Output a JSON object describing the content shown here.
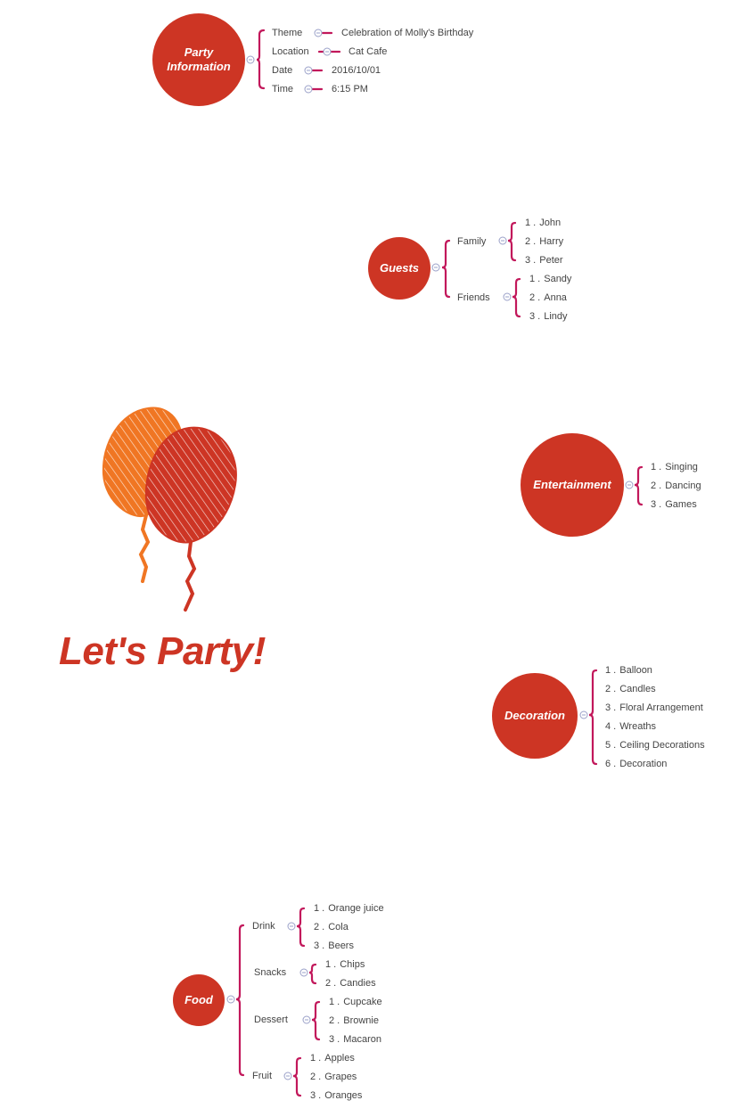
{
  "title": "Let's Party!",
  "colors": {
    "node": "#cd3524",
    "branch": "#c2185b",
    "text": "#444444",
    "balloon_orange": "#f07623",
    "balloon_red": "#cd3524"
  },
  "party_info": {
    "label_line1": "Party",
    "label_line2": "Information",
    "rows": [
      {
        "key": "Theme",
        "value": "Celebration of Molly's Birthday"
      },
      {
        "key": "Location",
        "value": "Cat Cafe"
      },
      {
        "key": "Date",
        "value": "2016/10/01"
      },
      {
        "key": "Time",
        "value": "6:15 PM"
      }
    ]
  },
  "guests": {
    "label": "Guests",
    "groups": [
      {
        "name": "Family",
        "items": [
          "John",
          "Harry",
          "Peter"
        ]
      },
      {
        "name": "Friends",
        "items": [
          "Sandy",
          "Anna",
          "Lindy"
        ]
      }
    ]
  },
  "entertainment": {
    "label": "Entertainment",
    "items": [
      "Singing",
      "Dancing",
      "Games"
    ]
  },
  "decoration": {
    "label": "Decoration",
    "items": [
      "Balloon",
      "Candles",
      "Floral Arrangement",
      "Wreaths",
      "Ceiling Decorations",
      "Decoration"
    ]
  },
  "food": {
    "label": "Food",
    "groups": [
      {
        "name": "Drink",
        "items": [
          "Orange juice",
          "Cola",
          "Beers"
        ]
      },
      {
        "name": "Snacks",
        "items": [
          "Chips",
          "Candies"
        ]
      },
      {
        "name": "Dessert",
        "items": [
          "Cupcake",
          "Brownie",
          "Macaron"
        ]
      },
      {
        "name": "Fruit",
        "items": [
          "Apples",
          "Grapes",
          "Oranges"
        ]
      }
    ]
  },
  "numbers": [
    "1 .",
    "2 .",
    "3 .",
    "4 .",
    "5 .",
    "6 ."
  ]
}
